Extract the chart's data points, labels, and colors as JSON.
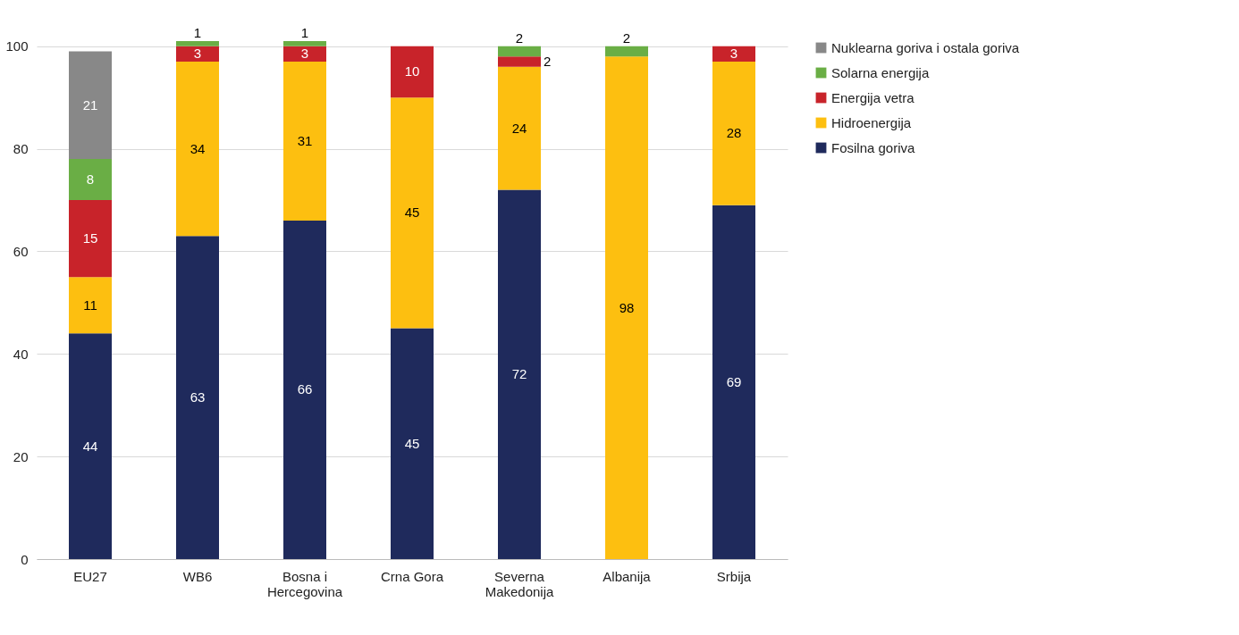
{
  "chart_data": {
    "type": "bar",
    "stacked": true,
    "categories": [
      "EU27",
      "WB6",
      "Bosna i Hercegovina",
      "Crna Gora",
      "Severna Makedonija",
      "Albanija",
      "Srbija"
    ],
    "series": [
      {
        "name": "Fosilna goriva",
        "color": "#1f2a5c",
        "values": [
          44,
          63,
          66,
          45,
          72,
          null,
          69
        ]
      },
      {
        "name": "Hidroenergija",
        "color": "#fdbf10",
        "values": [
          11,
          34,
          31,
          45,
          24,
          98,
          28
        ]
      },
      {
        "name": "Energija vetra",
        "color": "#c8232a",
        "values": [
          15,
          3,
          3,
          10,
          2,
          null,
          3
        ]
      },
      {
        "name": "Solarna energija",
        "color": "#6aae45",
        "values": [
          8,
          1,
          1,
          null,
          2,
          2,
          null
        ]
      },
      {
        "name": "Nuklearna goriva i ostala goriva",
        "color": "#888888",
        "values": [
          21,
          null,
          null,
          null,
          null,
          null,
          null
        ]
      }
    ],
    "ylim": [
      0,
      101
    ],
    "yticks": [
      0,
      20,
      40,
      60,
      80,
      100
    ],
    "grid": "y",
    "legend": "right",
    "data_labels": true
  }
}
